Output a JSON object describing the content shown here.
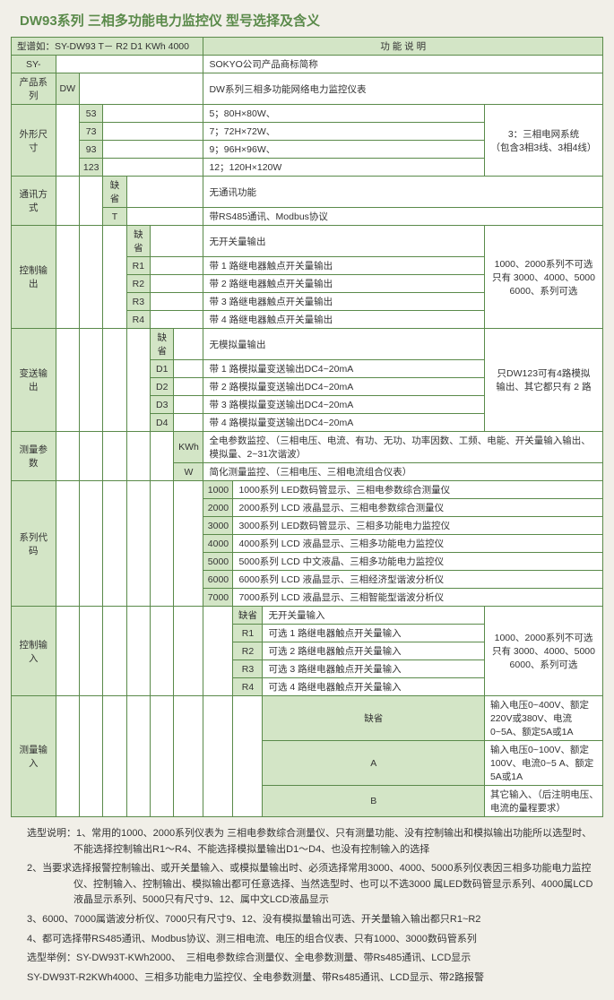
{
  "title": "DW93系列 三相多功能电力监控仪 型号选择及含义",
  "header": {
    "model_label": "型谱如：SY-DW93 T－ R2  D1  KWh  4000",
    "func_label": "功 能 说 明"
  },
  "rows": {
    "sy": {
      "code": "SY-",
      "desc": "SOKYO公司产品商标简称"
    },
    "dw": {
      "label": "产品系列",
      "code": "DW",
      "desc": "DW系列三相多功能网络电力监控仪表"
    },
    "size": {
      "label": "外形尺寸",
      "items": [
        {
          "code": "53",
          "desc": "5；80H×80W、"
        },
        {
          "code": "73",
          "desc": "7；72H×72W、"
        },
        {
          "code": "93",
          "desc": "9；96H×96W、"
        },
        {
          "code": "123",
          "desc": "12；120H×120W"
        }
      ],
      "side": "3：三相电网系统\n（包含3相3线、3相4线）"
    },
    "comm": {
      "label": "通讯方式",
      "items": [
        {
          "code": "缺省",
          "desc": "无通讯功能"
        },
        {
          "code": "T",
          "desc": "带RS485通讯、Modbus协议"
        }
      ]
    },
    "ctrl_out": {
      "label": "控制输出",
      "items": [
        {
          "code": "缺省",
          "desc": "无开关量输出"
        },
        {
          "code": "R1",
          "desc": "带 1 路继电器触点开关量输出"
        },
        {
          "code": "R2",
          "desc": "带 2 路继电器触点开关量输出"
        },
        {
          "code": "R3",
          "desc": "带 3 路继电器触点开关量输出"
        },
        {
          "code": "R4",
          "desc": "带 4 路继电器触点开关量输出"
        }
      ],
      "side": "1000、2000系列不可选\n只有 3000、4000、5000\n6000、系列可选"
    },
    "analog_out": {
      "label": "变送输出",
      "items": [
        {
          "code": "缺省",
          "desc": "无模拟量输出"
        },
        {
          "code": "D1",
          "desc": "带 1 路模拟量变送输出DC4~20mA"
        },
        {
          "code": "D2",
          "desc": "带 2 路模拟量变送输出DC4~20mA"
        },
        {
          "code": "D3",
          "desc": "带 3 路模拟量变送输出DC4~20mA"
        },
        {
          "code": "D4",
          "desc": "带 4 路模拟量变送输出DC4~20mA"
        }
      ],
      "side": "只DW123可有4路模拟\n输出、其它都只有 2 路"
    },
    "meas_param": {
      "label": "测量参数",
      "items": [
        {
          "code": "KWh",
          "desc": "全电参数监控、（三相电压、电流、有功、无功、功率因数、工频、电能、开关量输入输出、模拟量、2~31次谐波）"
        },
        {
          "code": "W",
          "desc": "简化测量监控、（三相电压、三相电流组合仪表）"
        }
      ]
    },
    "series": {
      "label": "系列代码",
      "items": [
        {
          "code": "1000",
          "desc": "1000系列 LED数码管显示、三相电参数综合测量仪"
        },
        {
          "code": "2000",
          "desc": "2000系列 LCD  液晶显示、三相电参数综合测量仪"
        },
        {
          "code": "3000",
          "desc": "3000系列 LED数码管显示、三相多功能电力监控仪"
        },
        {
          "code": "4000",
          "desc": "4000系列 LCD  液晶显示、三相多功能电力监控仪"
        },
        {
          "code": "5000",
          "desc": "5000系列 LCD  中文液晶、三相多功能电力监控仪"
        },
        {
          "code": "6000",
          "desc": "6000系列 LCD  液晶显示、三相经济型谐波分析仪"
        },
        {
          "code": "7000",
          "desc": "7000系列 LCD  液晶显示、三相智能型谐波分析仪"
        }
      ]
    },
    "ctrl_in": {
      "label": "控制输入",
      "items": [
        {
          "code": "缺省",
          "desc": "无开关量输入"
        },
        {
          "code": "R1",
          "desc": "可选 1 路继电器触点开关量输入"
        },
        {
          "code": "R2",
          "desc": "可选 2 路继电器触点开关量输入"
        },
        {
          "code": "R3",
          "desc": "可选 3 路继电器触点开关量输入"
        },
        {
          "code": "R4",
          "desc": "可选 4 路继电器触点开关量输入"
        }
      ],
      "side": "1000、2000系列不可选\n只有 3000、4000、5000\n6000、系列可选"
    },
    "meas_in": {
      "label": "测量输入",
      "items": [
        {
          "code": "缺省",
          "desc": "输入电压0~400V、额定220V或380V、电流0~5A、额定5A或1A"
        },
        {
          "code": "A",
          "desc": "输入电压0~100V、额定100V、电流0~5 A、额定5A或1A"
        },
        {
          "code": "B",
          "desc": "其它输入、（后注明电压、电流的量程要求）"
        }
      ]
    }
  },
  "notes": {
    "sel_label": "选型说明：",
    "sel": [
      "1、常用的1000、2000系列仪表为 三相电参数综合测量仪、只有测量功能、没有控制输出和模拟输出功能所以选型时、不能选择控制输出R1～R4、不能选择模拟量输出D1～D4、也没有控制输入的选择",
      "2、当要求选择报警控制输出、或开关量输入、或模拟量输出时、必须选择常用3000、4000、5000系列仪表因三相多功能电力监控仪、控制输入、控制输出、模拟输出都可任意选择、当然选型时、也可以不选3000 属LED数码管显示系列、4000属LCD液晶显示系列、5000只有尺寸9、12、属中文LCD液晶显示",
      "3、6000、7000属谐波分析仪、7000只有尺寸9、12、没有模拟量输出可选、开关量输入输出都只R1~R2",
      "4、都可选择带RS485通讯、Modbus协议、测三相电流、电压的组合仪表、只有1000、3000数码管系列"
    ],
    "ex_label": "选型举例：",
    "ex": [
      "SY-DW93T-KWh2000、　三相电参数综合测量仪、全电参数测量、带Rs485通讯、LCD显示",
      "SY-DW93T-R2KWh4000、三相多功能电力监控仪、全电参数测量、带Rs485通讯、LCD显示、带2路报警"
    ]
  },
  "colors": {
    "border": "#5a8a4a",
    "header_bg": "#d3e5c6",
    "page_bg": "#f1efe8",
    "title_color": "#5a8a4a"
  }
}
